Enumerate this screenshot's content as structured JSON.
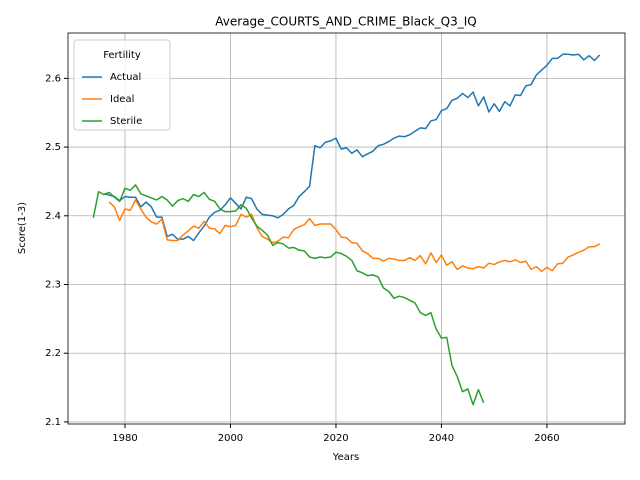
{
  "chart_data": {
    "type": "line",
    "title": "Average_COURTS_AND_CRIME_Black_Q3_IQ",
    "xlabel": "Years",
    "ylabel": "Score(1-3)",
    "legend_title": "Fertility",
    "legend": "upper left",
    "grid": true,
    "xlim": [
      1969.2,
      2074.8
    ],
    "xticks": [
      1980,
      2000,
      2020,
      2040,
      2060
    ],
    "ylim": [
      2.097,
      2.666
    ],
    "yticks": [
      2.1,
      2.2,
      2.3,
      2.4,
      2.5,
      2.6
    ],
    "x": [
      1974,
      1975,
      1976,
      1977,
      1978,
      1979,
      1980,
      1981,
      1982,
      1983,
      1984,
      1985,
      1986,
      1987,
      1988,
      1989,
      1990,
      1991,
      1992,
      1993,
      1994,
      1995,
      1996,
      1997,
      1998,
      1999,
      2000,
      2001,
      2002,
      2003,
      2004,
      2005,
      2006,
      2007,
      2008,
      2009,
      2010,
      2011,
      2012,
      2013,
      2014,
      2015,
      2016,
      2017,
      2018,
      2019,
      2020,
      2021,
      2022,
      2023,
      2024,
      2025,
      2026,
      2027,
      2028,
      2029,
      2030,
      2031,
      2032,
      2033,
      2034,
      2035,
      2036,
      2037,
      2038,
      2039,
      2040,
      2041,
      2042,
      2043,
      2044,
      2045,
      2046,
      2047,
      2048,
      2049,
      2050,
      2051,
      2052,
      2053,
      2054,
      2055,
      2056,
      2057,
      2058,
      2059,
      2060,
      2061,
      2062,
      2063,
      2064,
      2065,
      2066,
      2067,
      2068,
      2069,
      2070
    ],
    "series": [
      {
        "name": "Actual",
        "color": "#1f77b4",
        "values": [
          null,
          null,
          2.432,
          2.43,
          2.428,
          2.422,
          2.428,
          2.427,
          2.427,
          2.413,
          2.42,
          2.413,
          2.398,
          2.398,
          2.37,
          2.373,
          2.366,
          2.366,
          2.37,
          2.364,
          2.375,
          2.385,
          2.398,
          2.405,
          2.408,
          2.416,
          2.426,
          2.418,
          2.41,
          2.427,
          2.425,
          2.41,
          2.402,
          2.401,
          2.4,
          2.397,
          2.402,
          2.41,
          2.415,
          2.428,
          2.435,
          2.443,
          2.502,
          2.499,
          2.507,
          2.509,
          2.513,
          2.497,
          2.499,
          2.491,
          2.496,
          2.486,
          2.49,
          2.494,
          2.502,
          2.504,
          2.508,
          2.513,
          2.516,
          2.515,
          2.518,
          2.523,
          2.528,
          2.527,
          2.538,
          2.54,
          2.553,
          2.556,
          2.568,
          2.571,
          2.578,
          2.572,
          2.58,
          2.56,
          2.573,
          2.551,
          2.563,
          2.552,
          2.566,
          2.56,
          2.576,
          2.575,
          2.589,
          2.591,
          2.605,
          2.612,
          2.619,
          2.629,
          2.629,
          2.635,
          2.635,
          2.634,
          2.635,
          2.627,
          2.633,
          2.626,
          2.634
        ]
      },
      {
        "name": "Ideal",
        "color": "#ff7f0e",
        "values": [
          null,
          null,
          null,
          2.42,
          2.413,
          2.393,
          2.41,
          2.408,
          2.423,
          2.41,
          2.398,
          2.391,
          2.388,
          2.395,
          2.365,
          2.364,
          2.364,
          2.372,
          2.378,
          2.385,
          2.382,
          2.392,
          2.382,
          2.381,
          2.374,
          2.386,
          2.384,
          2.386,
          2.402,
          2.398,
          2.402,
          2.383,
          2.37,
          2.366,
          2.361,
          2.363,
          2.369,
          2.368,
          2.38,
          2.384,
          2.387,
          2.396,
          2.386,
          2.388,
          2.388,
          2.388,
          2.38,
          2.369,
          2.368,
          2.361,
          2.36,
          2.349,
          2.345,
          2.338,
          2.338,
          2.334,
          2.338,
          2.337,
          2.335,
          2.335,
          2.339,
          2.335,
          2.342,
          2.33,
          2.346,
          2.332,
          2.343,
          2.328,
          2.333,
          2.322,
          2.327,
          2.324,
          2.323,
          2.326,
          2.324,
          2.331,
          2.329,
          2.333,
          2.335,
          2.333,
          2.336,
          2.332,
          2.334,
          2.322,
          2.326,
          2.319,
          2.325,
          2.32,
          2.33,
          2.331,
          2.34,
          2.343,
          2.347,
          2.35,
          2.355,
          2.355,
          2.359
        ]
      },
      {
        "name": "Sterile",
        "color": "#2ca02c",
        "values": [
          2.397,
          2.435,
          2.431,
          2.434,
          2.427,
          2.421,
          2.44,
          2.437,
          2.445,
          2.432,
          2.429,
          2.426,
          2.423,
          2.428,
          2.423,
          2.414,
          2.422,
          2.425,
          2.421,
          2.431,
          2.428,
          2.434,
          2.424,
          2.421,
          2.41,
          2.406,
          2.406,
          2.407,
          2.416,
          2.411,
          2.397,
          2.385,
          2.379,
          2.372,
          2.357,
          2.361,
          2.359,
          2.353,
          2.354,
          2.35,
          2.349,
          2.34,
          2.338,
          2.34,
          2.339,
          2.34,
          2.347,
          2.345,
          2.341,
          2.335,
          2.32,
          2.317,
          2.313,
          2.314,
          2.311,
          2.295,
          2.29,
          2.28,
          2.283,
          2.281,
          2.277,
          2.273,
          2.259,
          2.255,
          2.259,
          2.235,
          2.222,
          2.223,
          2.182,
          2.166,
          2.144,
          2.148,
          2.125,
          2.147,
          2.128,
          null,
          null,
          null,
          null,
          null,
          null,
          null,
          null,
          null,
          null,
          null,
          null,
          null,
          null,
          null,
          null,
          null,
          null,
          null,
          null,
          null,
          null
        ]
      }
    ]
  }
}
